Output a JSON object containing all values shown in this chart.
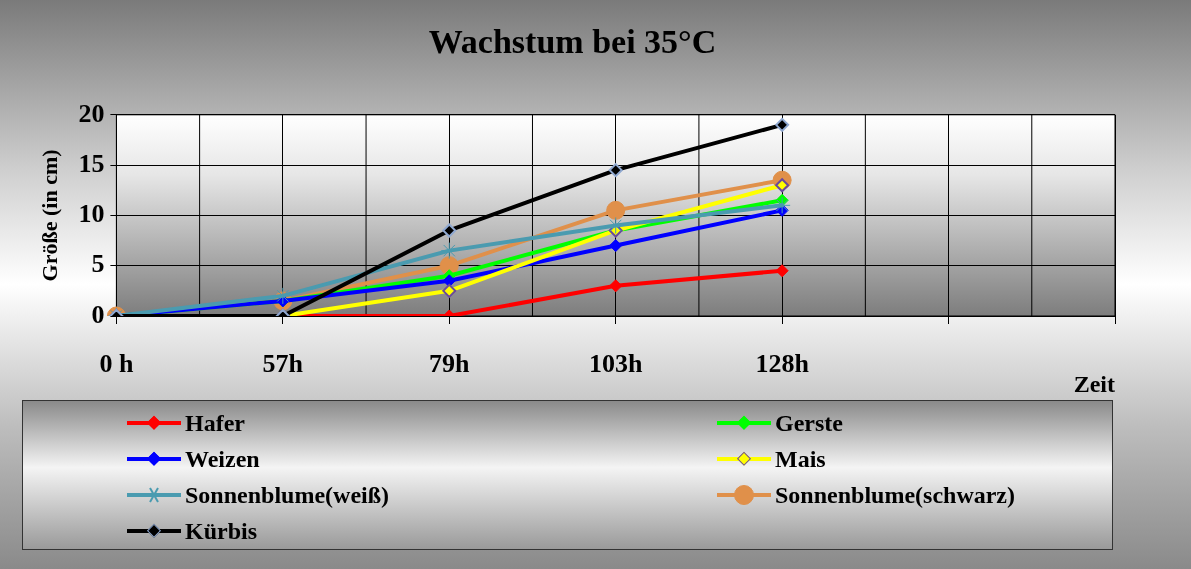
{
  "chart_data": {
    "type": "line",
    "title": "Wachstum bei 35°C",
    "xlabel": "Zeit",
    "ylabel": "Größe (in cm)",
    "categories": [
      "0 h",
      "57h",
      "79h",
      "103h",
      "128h",
      null,
      null
    ],
    "ylim": [
      0,
      20
    ],
    "yticks": [
      0,
      5,
      10,
      15,
      20
    ],
    "grid": true,
    "legend": "bottom",
    "line_style": "solid",
    "series": [
      {
        "name": "Hafer",
        "color": "#ff0000",
        "marker": "diamond",
        "values": [
          0,
          0,
          0,
          3,
          4.5,
          null,
          null
        ]
      },
      {
        "name": "Gerste",
        "color": "#00ff00",
        "marker": "diamond",
        "values": [
          0,
          1.5,
          4,
          8.5,
          11.5,
          null,
          null
        ]
      },
      {
        "name": "Weizen",
        "color": "#0000ff",
        "marker": "diamond",
        "values": [
          0,
          1.5,
          3.5,
          7,
          10.5,
          null,
          null
        ]
      },
      {
        "name": "Mais",
        "color": "#ffff00",
        "marker": "diamond",
        "values": [
          0,
          0,
          2.5,
          8.5,
          13,
          null,
          null
        ]
      },
      {
        "name": "Sonnenblume(weiß)",
        "color": "#4a9bb0",
        "marker": "cross",
        "values": [
          0,
          2,
          6.5,
          9,
          11,
          null,
          null
        ]
      },
      {
        "name": "Sonnenblume(schwarz)",
        "color": "#e0904a",
        "marker": "circle",
        "values": [
          0,
          1.5,
          5,
          10.5,
          13.5,
          null,
          null
        ]
      },
      {
        "name": "Kürbis",
        "color": "#000000",
        "marker": "diamond",
        "values": [
          0,
          0,
          8.5,
          14.5,
          19,
          null,
          null
        ]
      }
    ]
  }
}
